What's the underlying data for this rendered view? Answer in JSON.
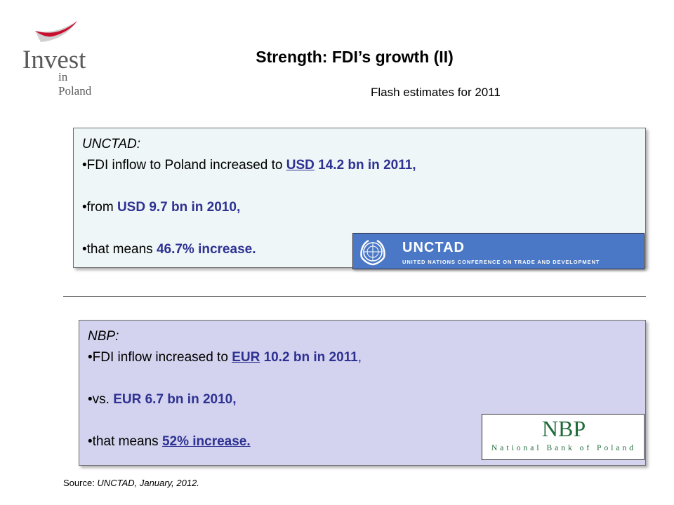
{
  "logo": {
    "line1": "Invest",
    "line2": "in Poland"
  },
  "title": "Strength: FDI’s growth (II)",
  "subtitle": "Flash estimates for 2011",
  "unctad_box": {
    "heading": "UNCTAD:",
    "line1_prefix": "•FDI inflow to Poland increased to ",
    "line1_currency": "USD",
    "line1_value": " 14.2 bn in 2011,",
    "line2_prefix": "•from ",
    "line2_value": "USD 9.7 bn in 2010,",
    "line3_prefix": "•that means ",
    "line3_value": "46.7% increase.",
    "logo_name": "UNCTAD",
    "logo_sub": "UNITED NATIONS CONFERENCE ON TRADE AND DEVELOPMENT"
  },
  "nbp_box": {
    "heading": "NBP:",
    "line1_prefix": "•FDI inflow increased to ",
    "line1_currency": "EUR",
    "line1_value": " 10.2 bn in 2011",
    "line1_suffix": ",",
    "line2_prefix": "•vs. ",
    "line2_value": "EUR 6.7 bn in 2010,",
    "line3_prefix": "•that means ",
    "line3_value": "52% increase.",
    "logo_name": "NBP",
    "logo_sub": "National Bank of Poland"
  },
  "source": {
    "label": "Source: ",
    "text": "UNCTAD, January, 2012."
  },
  "colors": {
    "accent_blue": "#2e3192",
    "logo_red": "#c8102e",
    "nbp_green": "#1f6b3a",
    "unctad_blue": "#4a78c6"
  }
}
